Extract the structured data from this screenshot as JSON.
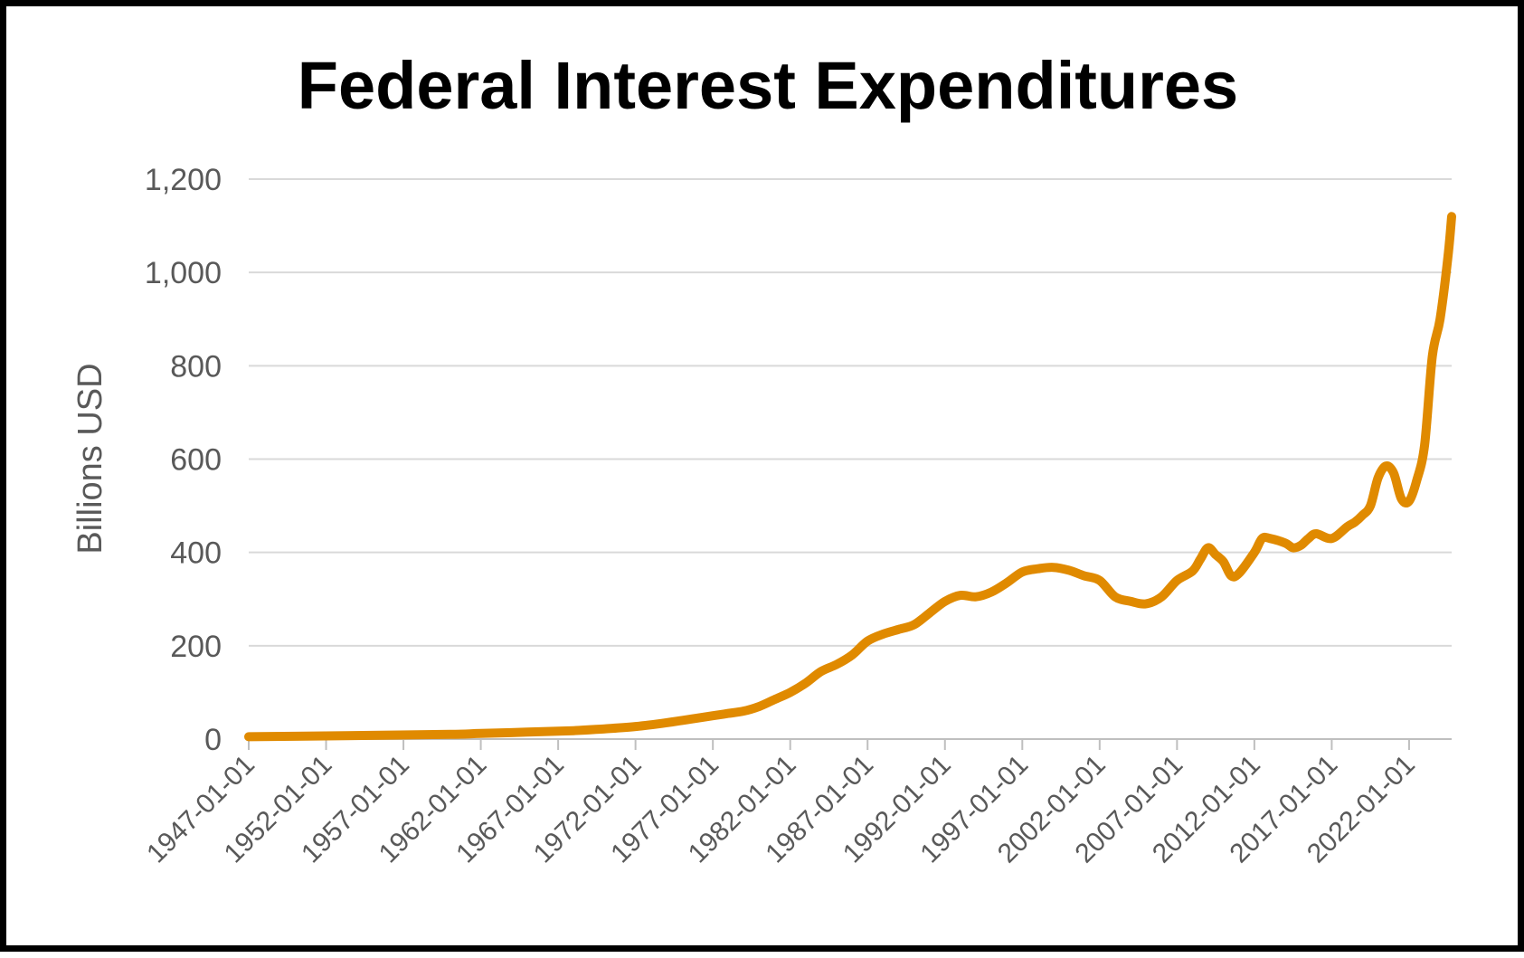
{
  "chart_data": {
    "type": "line",
    "title": "Federal Interest Expenditures",
    "xlabel": "",
    "ylabel": "Billions USD",
    "ylim": [
      0,
      1200
    ],
    "yticks": [
      0,
      200,
      400,
      600,
      800,
      1000,
      1200
    ],
    "ytick_labels": [
      "0",
      "200",
      "400",
      "600",
      "800",
      "1,000",
      "1,200"
    ],
    "xlim": [
      1947.0,
      2024.75
    ],
    "xticks": [
      "1947-01-01",
      "1952-01-01",
      "1957-01-01",
      "1962-01-01",
      "1967-01-01",
      "1972-01-01",
      "1977-01-01",
      "1982-01-01",
      "1987-01-01",
      "1992-01-01",
      "1997-01-01",
      "2002-01-01",
      "2007-01-01",
      "2012-01-01",
      "2017-01-01",
      "2022-01-01"
    ],
    "grid": true,
    "legend": "none",
    "colors": {
      "line": "#E08A00",
      "grid": "#D9D9D9",
      "axis": "#BFBFBF",
      "text": "#595959",
      "border": "#000000"
    },
    "series": [
      {
        "x": [
          "1947-01-01",
          "1950-01-01",
          "1955-01-01",
          "1960-01-01",
          "1962-01-01",
          "1965-01-01",
          "1968-01-01",
          "1970-01-01",
          "1972-01-01",
          "1974-01-01",
          "1975-01-01",
          "1977-01-01",
          "1978-01-01",
          "1979-01-01",
          "1980-01-01",
          "1981-01-01",
          "1982-01-01",
          "1983-01-01",
          "1984-01-01",
          "1985-01-01",
          "1986-01-01",
          "1987-01-01",
          "1988-01-01",
          "1989-01-01",
          "1990-01-01",
          "1991-01-01",
          "1992-01-01",
          "1993-01-01",
          "1994-01-01",
          "1995-01-01",
          "1996-01-01",
          "1997-01-01",
          "1998-01-01",
          "1999-01-01",
          "2000-01-01",
          "2001-01-01",
          "2002-01-01",
          "2003-01-01",
          "2004-01-01",
          "2005-01-01",
          "2006-01-01",
          "2007-01-01",
          "2008-01-01",
          "2008-07-01",
          "2009-01-01",
          "2009-07-01",
          "2010-01-01",
          "2010-07-01",
          "2011-01-01",
          "2012-01-01",
          "2012-07-01",
          "2013-01-01",
          "2014-01-01",
          "2014-07-01",
          "2015-01-01",
          "2015-07-01",
          "2016-01-01",
          "2017-01-01",
          "2018-01-01",
          "2018-07-01",
          "2019-01-01",
          "2019-07-01",
          "2020-01-01",
          "2020-07-01",
          "2021-01-01",
          "2021-07-01",
          "2022-01-01",
          "2022-07-01",
          "2023-01-01",
          "2023-07-01",
          "2024-01-01",
          "2024-07-01",
          "2024-10-01"
        ],
        "y": [
          5,
          6,
          8,
          10,
          12,
          15,
          18,
          22,
          27,
          35,
          40,
          50,
          55,
          60,
          70,
          85,
          100,
          120,
          145,
          160,
          180,
          210,
          225,
          235,
          245,
          270,
          295,
          308,
          305,
          315,
          335,
          358,
          365,
          368,
          362,
          350,
          340,
          305,
          295,
          290,
          305,
          340,
          360,
          385,
          410,
          395,
          380,
          350,
          355,
          400,
          430,
          430,
          420,
          410,
          415,
          430,
          440,
          430,
          455,
          465,
          480,
          500,
          560,
          585,
          570,
          515,
          510,
          555,
          630,
          820,
          900,
          1030,
          1120
        ]
      }
    ]
  }
}
